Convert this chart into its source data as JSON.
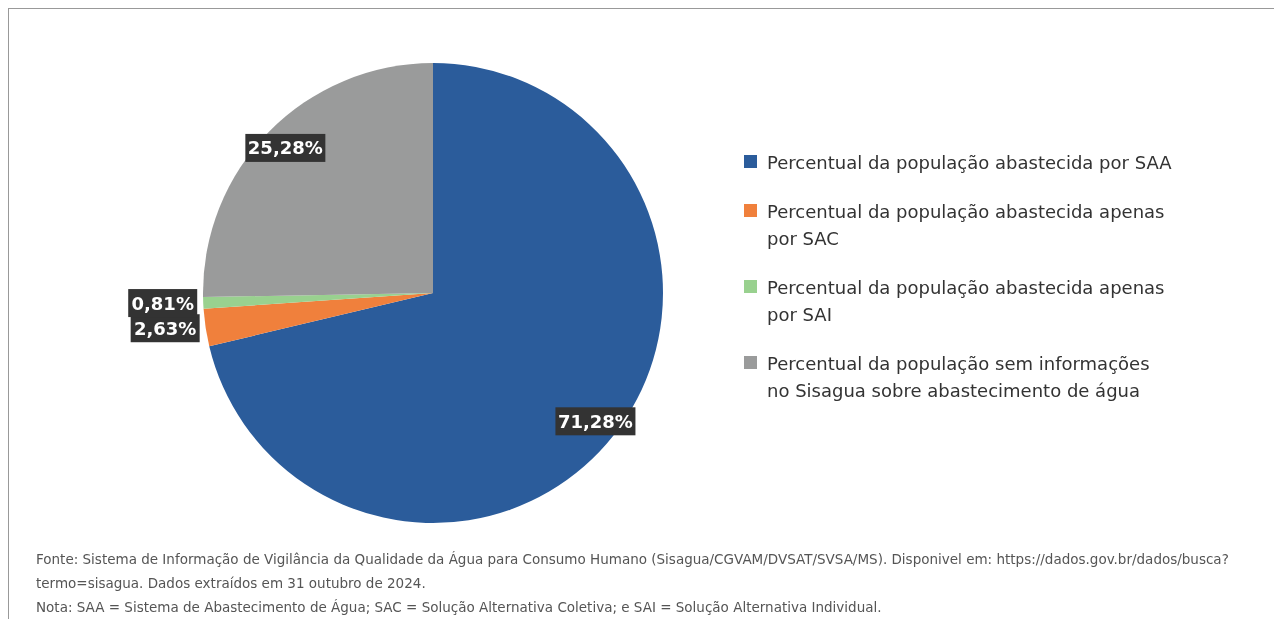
{
  "chart_data": {
    "type": "pie",
    "categories": [
      "Percentual da população abastecida por SAA",
      "Percentual da população abastecida apenas por SAC",
      "Percentual da população abastecida apenas por SAI",
      "Percentual da população sem informações no Sisagua sobre abastecimento de água"
    ],
    "values": [
      71.28,
      2.63,
      0.81,
      25.28
    ],
    "colors": [
      "#2b5c9b",
      "#f0803c",
      "#99d18f",
      "#9a9b9b"
    ],
    "value_labels": [
      "71,28%",
      "2,63%",
      "0,81%",
      "25,28%"
    ],
    "legend": "right",
    "annotations": [
      "Fonte: Sistema de Informação de Vigilância da Qualidade da Água para Consumo Humano (Sisagua/CGVAM/DVSAT/SVSA/MS). Disponivel em: https://dados.gov.br/dados/busca?termo=sisagua. Dados extraídos em 31 outubro de 2024.",
      "Nota: SAA = Sistema de Abastecimento de Água; SAC = Solução Alternativa Coletiva; e SAI = Solução Alternativa Individual."
    ]
  }
}
